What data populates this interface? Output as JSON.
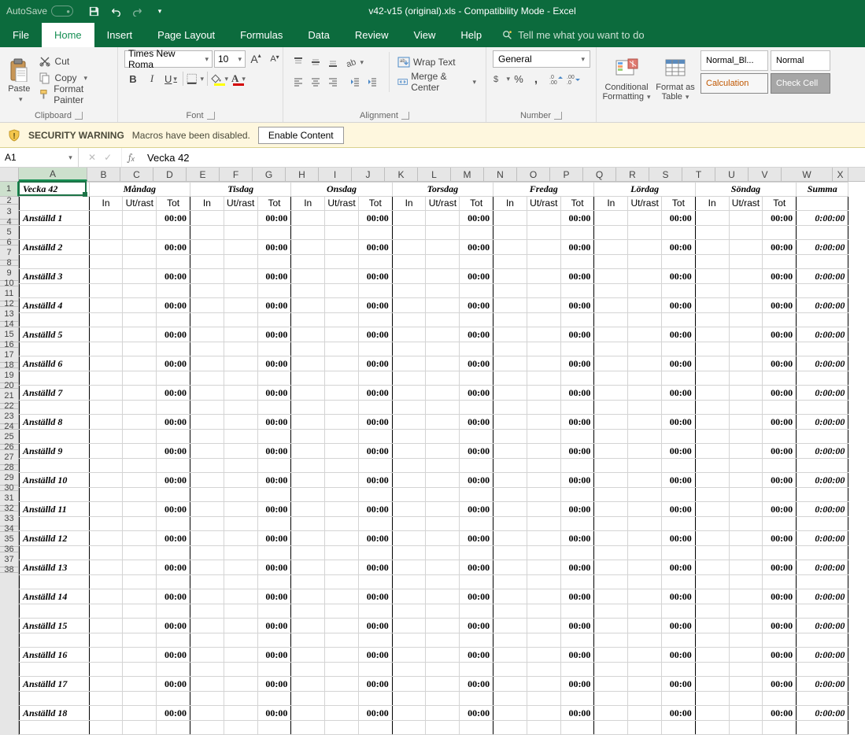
{
  "titlebar": {
    "autosave_label": "AutoSave",
    "autosave_state": "Off",
    "title": "v42-v15 (original).xls  -  Compatibility Mode  -  Excel"
  },
  "tabs": {
    "file": "File",
    "home": "Home",
    "insert": "Insert",
    "pagelayout": "Page Layout",
    "formulas": "Formulas",
    "data": "Data",
    "review": "Review",
    "view": "View",
    "help": "Help",
    "tellme": "Tell me what you want to do"
  },
  "ribbon": {
    "clipboard": {
      "label": "Clipboard",
      "paste": "Paste",
      "cut": "Cut",
      "copy": "Copy",
      "format_painter": "Format Painter"
    },
    "font": {
      "label": "Font",
      "family": "Times New Roma",
      "size": "10"
    },
    "alignment": {
      "label": "Alignment",
      "wrap": "Wrap Text",
      "merge": "Merge & Center"
    },
    "number": {
      "label": "Number",
      "format": "General"
    },
    "styles": {
      "conditional": "Conditional Formatting",
      "fmt_table": "Format as Table",
      "s1": "Normal_Bl...",
      "s2": "Normal",
      "s3": "Calculation",
      "s4": "Check Cell"
    }
  },
  "security": {
    "label": "SECURITY WARNING",
    "msg": "Macros have been disabled.",
    "button": "Enable Content"
  },
  "formula_bar": {
    "namebox": "A1",
    "value": "Vecka 42"
  },
  "sheet": {
    "colA_width": 87,
    "narrow_col_width": 42,
    "sum_col_width": 65,
    "row_height_main": 19,
    "row_height_thin": 7,
    "columns": [
      "A",
      "B",
      "C",
      "D",
      "E",
      "F",
      "G",
      "H",
      "I",
      "J",
      "K",
      "L",
      "M",
      "N",
      "O",
      "P",
      "Q",
      "R",
      "S",
      "T",
      "U",
      "V",
      "W",
      "X"
    ],
    "week_title": "Vecka 42",
    "days": [
      "Måndag",
      "Tisdag",
      "Onsdag",
      "Torsdag",
      "Fredag",
      "Lördag",
      "Söndag"
    ],
    "summa_label": "Summa",
    "sub_labels": [
      "In",
      "Ut/rast",
      "Tot"
    ],
    "employees": [
      {
        "name": "Anställd 1",
        "times": [
          "00:00",
          "00:00",
          "00:00",
          "00:00",
          "00:00",
          "00:00",
          "00:00"
        ],
        "sum": "0:00:00"
      },
      {
        "name": "Anställd 2",
        "times": [
          "00:00",
          "00:00",
          "00:00",
          "00:00",
          "00:00",
          "00:00",
          "00:00"
        ],
        "sum": "0:00:00"
      },
      {
        "name": "Anställd 3",
        "times": [
          "00:00",
          "00:00",
          "00:00",
          "00:00",
          "00:00",
          "00:00",
          "00:00"
        ],
        "sum": "0:00:00"
      },
      {
        "name": "Anställd 4",
        "times": [
          "00:00",
          "00:00",
          "00:00",
          "00:00",
          "00:00",
          "00:00",
          "00:00"
        ],
        "sum": "0:00:00"
      },
      {
        "name": "Anställd 5",
        "times": [
          "00:00",
          "00:00",
          "00:00",
          "00:00",
          "00:00",
          "00:00",
          "00:00"
        ],
        "sum": "0:00:00"
      },
      {
        "name": "Anställd 6",
        "times": [
          "00:00",
          "00:00",
          "00:00",
          "00:00",
          "00:00",
          "00:00",
          "00:00"
        ],
        "sum": "0:00:00"
      },
      {
        "name": "Anställd 7",
        "times": [
          "00:00",
          "00:00",
          "00:00",
          "00:00",
          "00:00",
          "00:00",
          "00:00"
        ],
        "sum": "0:00:00"
      },
      {
        "name": "Anställd 8",
        "times": [
          "00:00",
          "00:00",
          "00:00",
          "00:00",
          "00:00",
          "00:00",
          "00:00"
        ],
        "sum": "0:00:00"
      },
      {
        "name": "Anställd 9",
        "times": [
          "00:00",
          "00:00",
          "00:00",
          "00:00",
          "00:00",
          "00:00",
          "00:00"
        ],
        "sum": "0:00:00"
      },
      {
        "name": "Anställd 10",
        "times": [
          "00:00",
          "00:00",
          "00:00",
          "00:00",
          "00:00",
          "00:00",
          "00:00"
        ],
        "sum": "0:00:00"
      },
      {
        "name": "Anställd 11",
        "times": [
          "00:00",
          "00:00",
          "00:00",
          "00:00",
          "00:00",
          "00:00",
          "00:00"
        ],
        "sum": "0:00:00"
      },
      {
        "name": "Anställd 12",
        "times": [
          "00:00",
          "00:00",
          "00:00",
          "00:00",
          "00:00",
          "00:00",
          "00:00"
        ],
        "sum": "0:00:00"
      },
      {
        "name": "Anställd 13",
        "times": [
          "00:00",
          "00:00",
          "00:00",
          "00:00",
          "00:00",
          "00:00",
          "00:00"
        ],
        "sum": "0:00:00"
      },
      {
        "name": "Anställd 14",
        "times": [
          "00:00",
          "00:00",
          "00:00",
          "00:00",
          "00:00",
          "00:00",
          "00:00"
        ],
        "sum": "0:00:00"
      },
      {
        "name": "Anställd 15",
        "times": [
          "00:00",
          "00:00",
          "00:00",
          "00:00",
          "00:00",
          "00:00",
          "00:00"
        ],
        "sum": "0:00:00"
      },
      {
        "name": "Anställd 16",
        "times": [
          "00:00",
          "00:00",
          "00:00",
          "00:00",
          "00:00",
          "00:00",
          "00:00"
        ],
        "sum": "0:00:00"
      },
      {
        "name": "Anställd 17",
        "times": [
          "00:00",
          "00:00",
          "00:00",
          "00:00",
          "00:00",
          "00:00",
          "00:00"
        ],
        "sum": "0:00:00"
      },
      {
        "name": "Anställd 18",
        "times": [
          "00:00",
          "00:00",
          "00:00",
          "00:00",
          "00:00",
          "00:00",
          "00:00"
        ],
        "sum": "0:00:00"
      }
    ]
  },
  "colors": {
    "excel_green": "#0c6b3d",
    "selection_green": "#1c7346",
    "security_bg": "#fef7de"
  }
}
